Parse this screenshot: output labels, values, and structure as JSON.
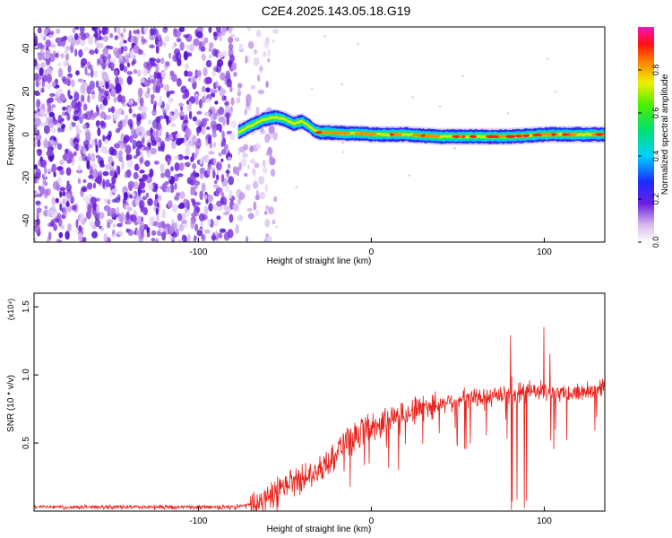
{
  "title": "C2E4.2025.143.05.18.G19",
  "chart_data": [
    {
      "type": "heatmap",
      "xlabel": "Height of straight line (km)",
      "ylabel": "Frequency (Hz)",
      "xlim": [
        -195,
        135
      ],
      "ylim": [
        -50,
        50
      ],
      "xticks": [
        -100,
        0,
        100
      ],
      "yticks": [
        -40,
        -20,
        0,
        20,
        40
      ],
      "ridge": {
        "x": [
          -77,
          -70,
          -62,
          -55,
          -50,
          -45,
          -40,
          -36,
          -33,
          -30,
          -25,
          -15,
          -5,
          0,
          10,
          20,
          40,
          60,
          80,
          100,
          120,
          135
        ],
        "y": [
          1,
          4,
          7,
          8,
          7,
          5,
          6,
          4,
          2,
          1,
          1,
          0.5,
          0.5,
          0,
          0,
          0,
          -1,
          -1,
          -1,
          0,
          0,
          0
        ]
      },
      "noise_region_x": [
        -195,
        -70
      ],
      "colorbar": {
        "label": "Normalized spectral amplitude",
        "range": [
          0,
          1
        ],
        "ticks": [
          "0.0",
          "0.2",
          "0.4",
          "0.6",
          "0.8"
        ]
      }
    },
    {
      "type": "line",
      "xlabel": "Height of straight line (km)",
      "ylabel": "SNR (10 * v/v)",
      "yscale_note": "(x10⁴)",
      "xlim": [
        -195,
        135
      ],
      "ylim": [
        0,
        1.6
      ],
      "xticks": [
        -100,
        0,
        100
      ],
      "yticks": [
        "0.5",
        "1.0",
        "1.5"
      ],
      "color": "#e8221c",
      "series": [
        {
          "x": [
            -195,
            -160,
            -120,
            -80,
            -70,
            -60,
            -55,
            -50,
            -45,
            -40,
            -35,
            -30,
            -25,
            -20,
            -15,
            -10,
            -5,
            0,
            10,
            20,
            30,
            40,
            50,
            60,
            70,
            80,
            85,
            90,
            95,
            100,
            105,
            110,
            120,
            130,
            135
          ],
          "y": [
            0.03,
            0.03,
            0.03,
            0.03,
            0.05,
            0.08,
            0.13,
            0.18,
            0.22,
            0.25,
            0.28,
            0.32,
            0.38,
            0.45,
            0.5,
            0.55,
            0.6,
            0.62,
            0.68,
            0.72,
            0.76,
            0.79,
            0.82,
            0.83,
            0.85,
            0.85,
            0.86,
            0.88,
            0.88,
            0.87,
            0.86,
            0.86,
            0.87,
            0.9,
            0.92
          ]
        }
      ]
    }
  ]
}
